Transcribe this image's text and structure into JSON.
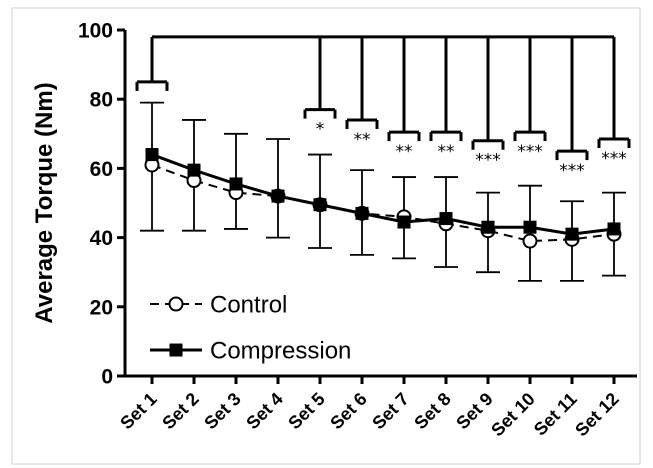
{
  "chart_data": {
    "type": "line",
    "ylabel": "Average Torque  (Nm)",
    "xlabel": "",
    "ylim": [
      0,
      100
    ],
    "yticks": [
      0,
      20,
      40,
      60,
      80,
      100
    ],
    "categories": [
      "Set 1",
      "Set 2",
      "Set 3",
      "Set 4",
      "Set 5",
      "Set 6",
      "Set 7",
      "Set 8",
      "Set 9",
      "Set 10",
      "Set 11",
      "Set 12"
    ],
    "series": [
      {
        "name": "Control",
        "marker": "open-circle",
        "line_style": "dashed",
        "values": [
          61,
          56.5,
          53,
          52,
          49.5,
          47,
          46,
          44,
          42,
          39,
          39.5,
          41
        ],
        "err_upper": [
          79,
          74,
          70,
          68.5,
          64,
          59.5,
          57.5,
          57.5,
          53,
          55,
          50.5,
          53
        ],
        "err_lower": [
          42,
          42,
          42.5,
          40,
          37,
          35,
          34,
          31.5,
          30,
          27.5,
          27.5,
          29
        ]
      },
      {
        "name": "Compression",
        "marker": "filled-square",
        "line_style": "solid",
        "values": [
          64,
          59.5,
          55.5,
          52,
          49.5,
          47,
          44.5,
          45.5,
          43,
          43,
          41,
          42.5
        ],
        "err_upper": [
          79,
          74,
          70,
          68.5,
          64,
          59.5,
          57.5,
          57.5,
          53,
          55,
          50.5,
          53
        ],
        "err_lower": [
          42,
          42,
          42.5,
          40,
          37,
          35,
          34,
          31.5,
          30,
          27.5,
          27.5,
          29
        ]
      }
    ],
    "significance": {
      "reference_category": "Set 1",
      "reference_bracket_y": 85,
      "top_bar_y": 98,
      "comparisons": [
        {
          "category": "Set 5",
          "label": "*",
          "bracket_y": 77
        },
        {
          "category": "Set 6",
          "label": "**",
          "bracket_y": 74
        },
        {
          "category": "Set 7",
          "label": "**",
          "bracket_y": 70.5
        },
        {
          "category": "Set 8",
          "label": "**",
          "bracket_y": 70.5
        },
        {
          "category": "Set 9",
          "label": "***",
          "bracket_y": 68
        },
        {
          "category": "Set 10",
          "label": "***",
          "bracket_y": 70.5
        },
        {
          "category": "Set 11",
          "label": "***",
          "bracket_y": 65
        },
        {
          "category": "Set 12",
          "label": "***",
          "bracket_y": 68.5
        }
      ]
    },
    "legend": {
      "placement": "lower-left",
      "entries": [
        {
          "label": "Control",
          "icon": "open-circle-dashed-line-icon"
        },
        {
          "label": "Compression",
          "icon": "filled-square-solid-line-icon"
        }
      ]
    },
    "grid": false,
    "colors": {
      "line": "#000000",
      "background": "#ffffff"
    }
  }
}
